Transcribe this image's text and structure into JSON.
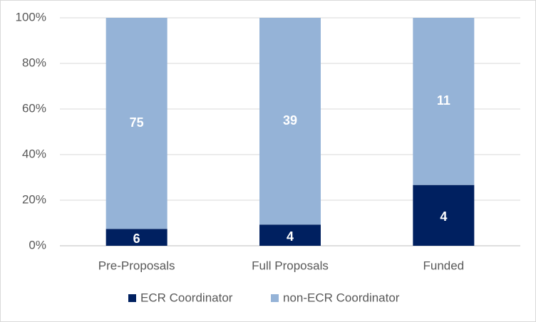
{
  "chart_data": {
    "type": "bar",
    "stacked": "percent",
    "categories": [
      "Pre-Proposals",
      "Full Proposals",
      "Funded"
    ],
    "series": [
      {
        "name": "ECR Coordinator",
        "color": "#002060",
        "values": [
          6,
          4,
          4
        ]
      },
      {
        "name": "non-ECR Coordinator",
        "color": "#95b3d7",
        "values": [
          75,
          39,
          11
        ]
      }
    ],
    "ylim": [
      0,
      100
    ],
    "yticks": [
      {
        "value": 0,
        "label": "0%"
      },
      {
        "value": 20,
        "label": "20%"
      },
      {
        "value": 40,
        "label": "40%"
      },
      {
        "value": 60,
        "label": "60%"
      },
      {
        "value": 80,
        "label": "80%"
      },
      {
        "value": 100,
        "label": "100%"
      }
    ],
    "grid": true,
    "legend": "bottom"
  }
}
